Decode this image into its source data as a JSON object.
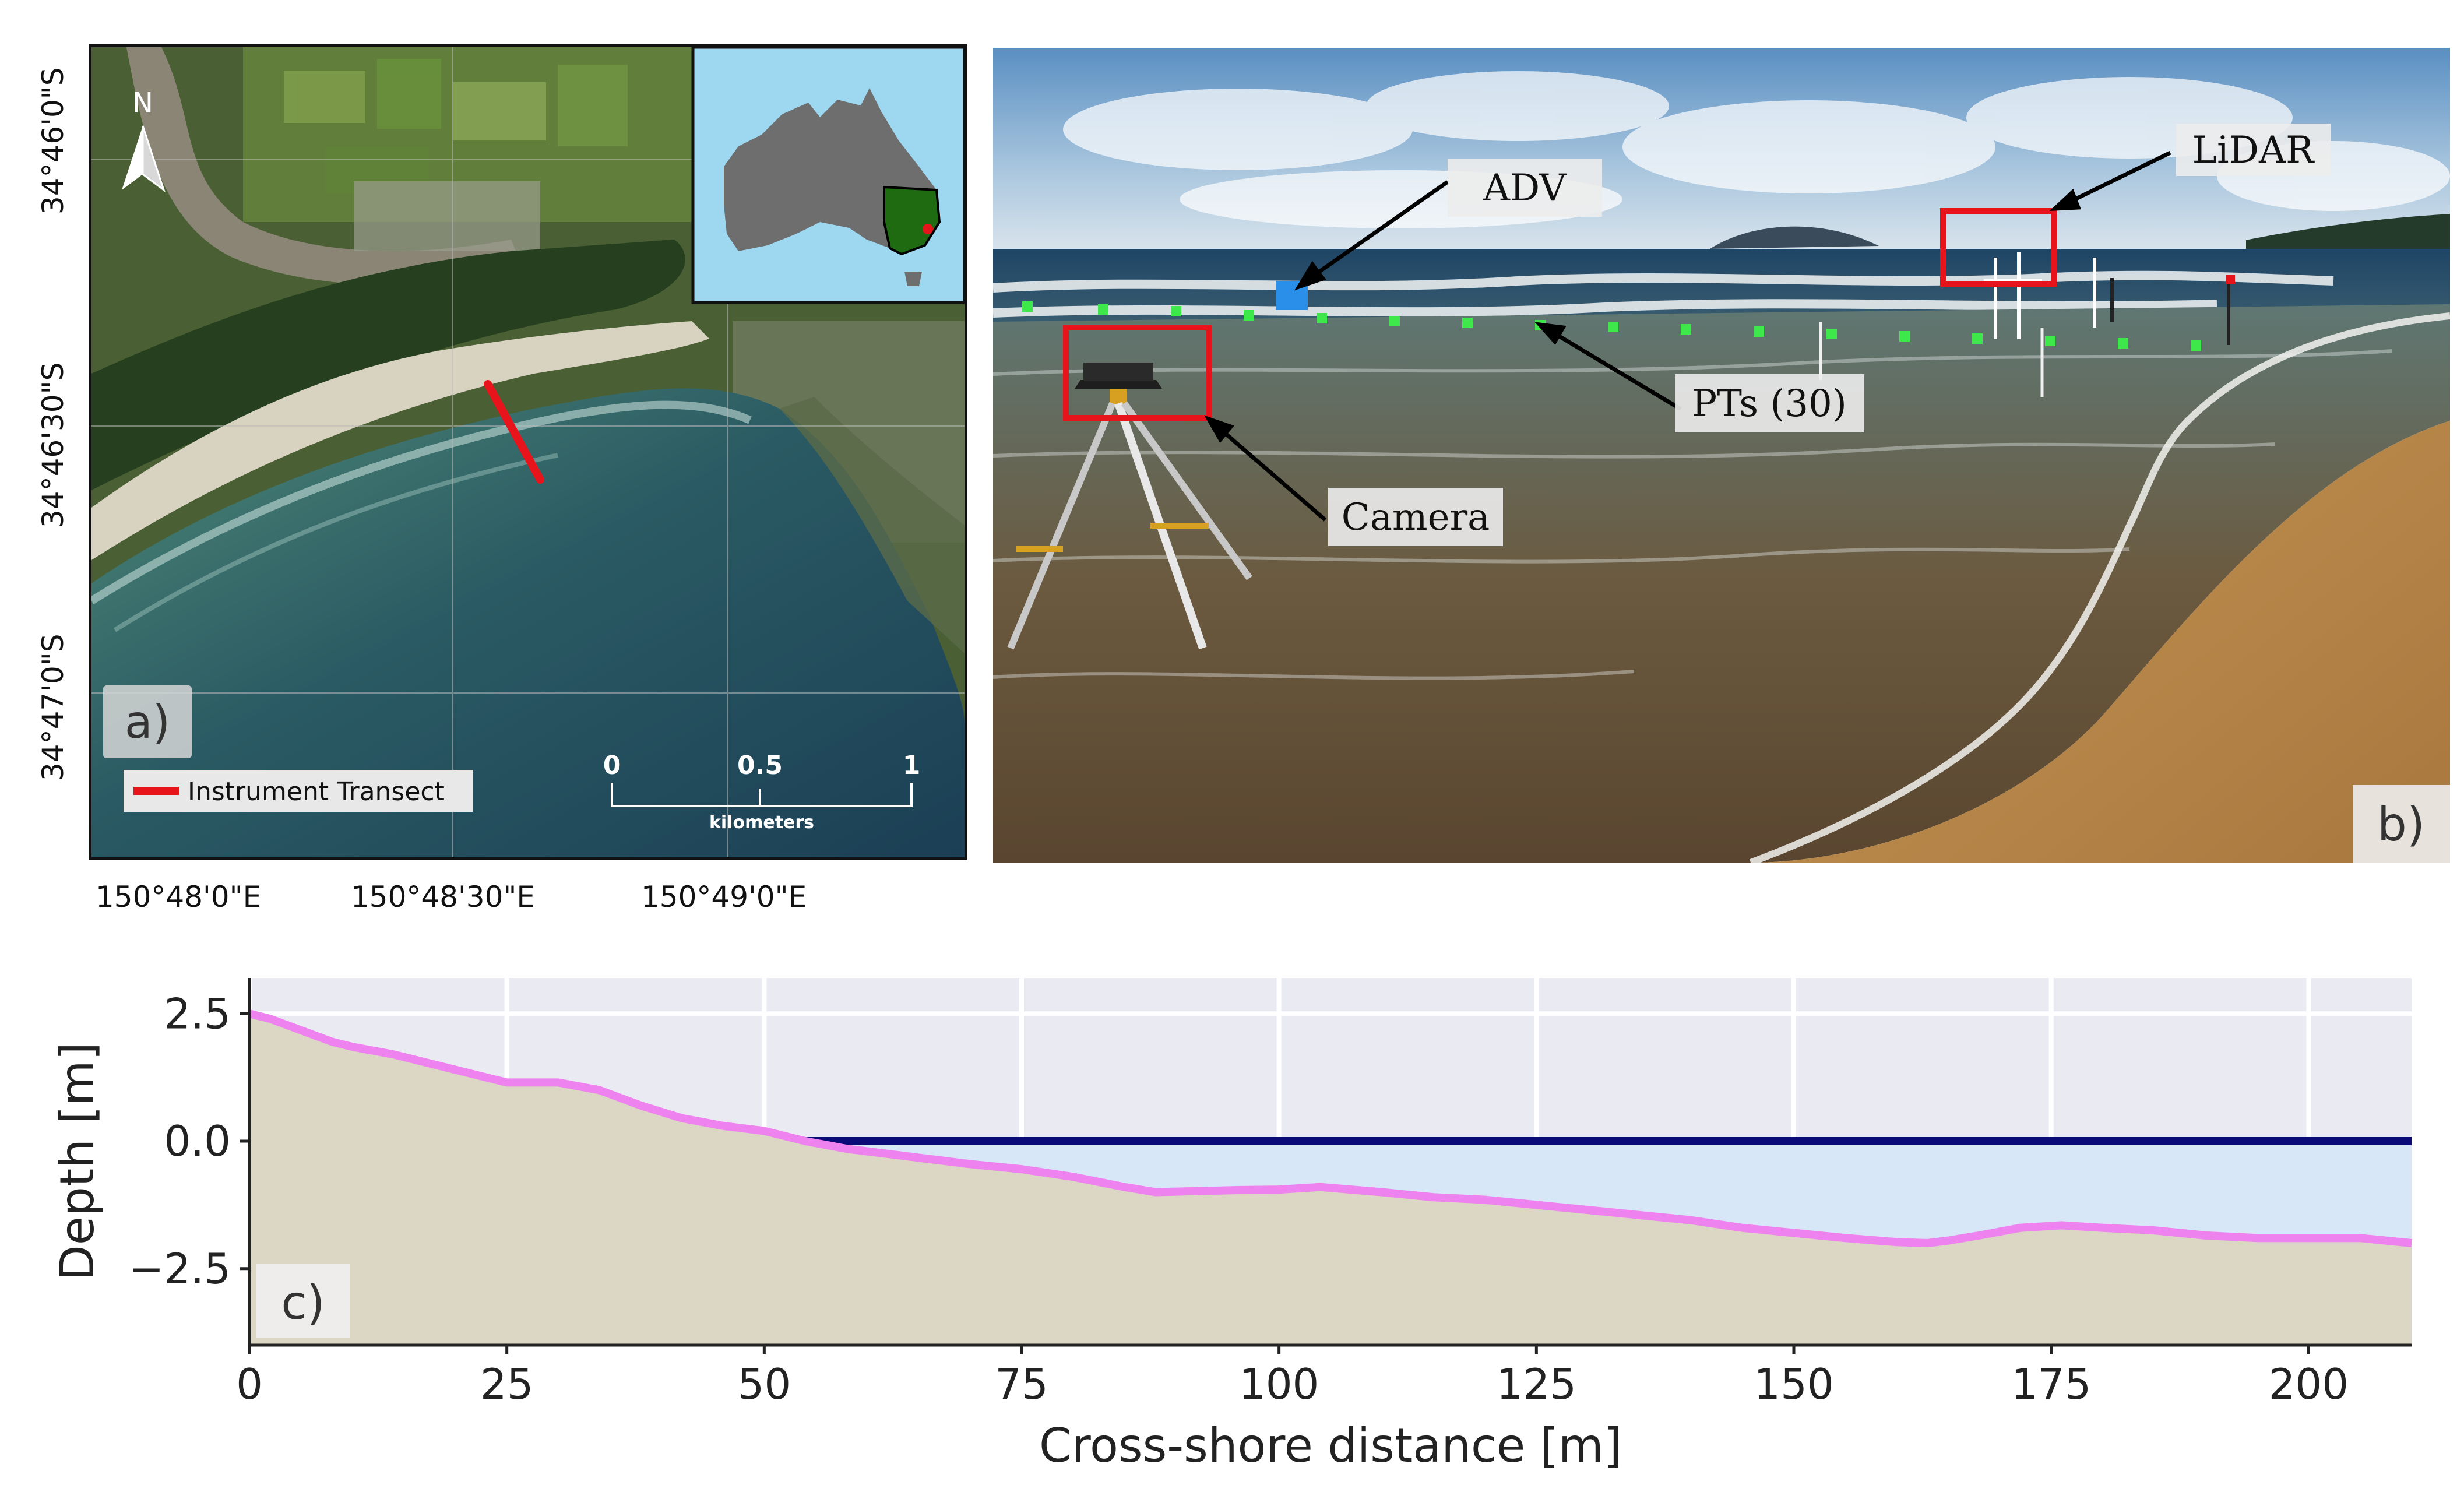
{
  "panel_a": {
    "label": "a)",
    "north": "N",
    "legend": "Instrument Transect",
    "scale": {
      "ticks": [
        "0",
        "0.5",
        "1"
      ],
      "unit": "kilometers"
    },
    "lat_labels": [
      "34°46'0\"S",
      "34°46'30\"S",
      "34°47'0\"S"
    ],
    "lon_labels": [
      "150°48'0\"E",
      "150°48'30\"E",
      "150°49'0\"E"
    ],
    "colors": {
      "transect": "#e8141c",
      "australia": "#6e6e6e",
      "nsw": "#1f6b12",
      "inset_sea": "#9dd7f0"
    }
  },
  "panel_b": {
    "label": "b)",
    "annotations": {
      "adv": "ADV",
      "lidar": "LiDAR",
      "pts": "PTs (30)",
      "camera": "Camera"
    },
    "colors": {
      "box": "#e8141c",
      "adv": "#2a8fe8",
      "pt": "#3ee84a"
    }
  },
  "panel_c": {
    "label": "c)",
    "chart_data": {
      "type": "area",
      "xlabel": "Cross-shore distance [m]",
      "ylabel": "Depth [m]",
      "xlim": [
        0,
        210
      ],
      "ylim": [
        -4,
        3.2
      ],
      "xticks": [
        0,
        25,
        50,
        75,
        100,
        125,
        150,
        175,
        200
      ],
      "yticks": [
        -2.5,
        0.0,
        2.5
      ],
      "ytick_labels": [
        "−2.5",
        "0.0",
        "2.5"
      ],
      "grid": true,
      "water_level": 0.0,
      "profile": {
        "x": [
          0,
          2,
          4,
          6,
          8,
          10,
          14,
          18,
          22,
          25,
          28,
          30,
          34,
          38,
          42,
          46,
          50,
          54,
          58,
          62,
          66,
          70,
          75,
          80,
          85,
          88,
          92,
          96,
          100,
          104,
          110,
          115,
          120,
          125,
          130,
          135,
          140,
          145,
          150,
          155,
          160,
          163,
          165,
          168,
          172,
          176,
          180,
          185,
          190,
          195,
          200,
          205,
          210
        ],
        "y": [
          2.5,
          2.4,
          2.25,
          2.1,
          1.95,
          1.85,
          1.7,
          1.5,
          1.3,
          1.15,
          1.15,
          1.15,
          1.0,
          0.7,
          0.45,
          0.3,
          0.2,
          0.0,
          -0.15,
          -0.25,
          -0.35,
          -0.45,
          -0.55,
          -0.7,
          -0.9,
          -1.0,
          -0.98,
          -0.96,
          -0.95,
          -0.9,
          -1.0,
          -1.1,
          -1.15,
          -1.25,
          -1.35,
          -1.45,
          -1.55,
          -1.7,
          -1.8,
          -1.9,
          -1.98,
          -2.0,
          -1.95,
          -1.85,
          -1.7,
          -1.65,
          -1.7,
          -1.75,
          -1.85,
          -1.9,
          -1.9,
          -1.9,
          -2.0
        ]
      },
      "colors": {
        "profile": "#ee82ee",
        "sand": "#dcd6c4",
        "water_fill": "#d7e7f7",
        "water_line": "#0a0a78",
        "plot_bg": "#eaeaf2"
      }
    }
  }
}
